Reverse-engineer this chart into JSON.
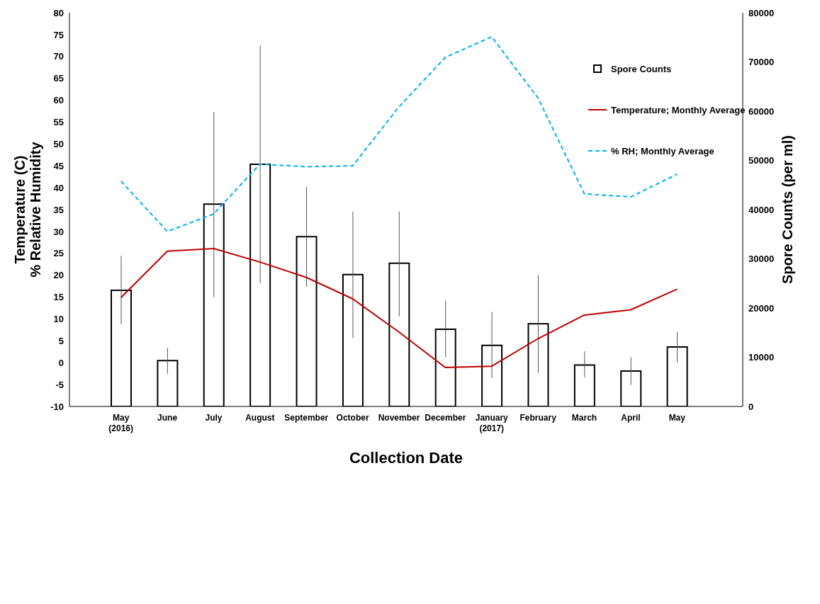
{
  "chart_data": {
    "type": "bar",
    "xlabel": "Collection Date",
    "ylabel": "Temperature (C)\n% Relative Humidity",
    "y2label": "Spore Counts (per ml)",
    "categories": [
      "May\n(2016)",
      "June",
      "July",
      "August",
      "September",
      "October",
      "November",
      "December",
      "January\n(2017)",
      "February",
      "March",
      "April",
      "May"
    ],
    "series": [
      {
        "name": "Spore Counts",
        "axis": "y2",
        "color": "#000000",
        "values": [
          23600,
          9300,
          41100,
          49200,
          34500,
          26800,
          29100,
          15700,
          12400,
          16800,
          8400,
          7200,
          12100
        ],
        "errors": [
          [
            16700,
            30600
          ],
          [
            6600,
            11900
          ],
          [
            22200,
            59800
          ],
          [
            25100,
            73300
          ],
          [
            24300,
            44600
          ],
          [
            13900,
            39600
          ],
          [
            18300,
            39600
          ],
          [
            10000,
            21500
          ],
          [
            5800,
            19200
          ],
          [
            6800,
            26700
          ],
          [
            5900,
            11200
          ],
          [
            4400,
            10000
          ],
          [
            8900,
            15100
          ]
        ]
      },
      {
        "name": "Temperature; Monthly Average",
        "type": "line",
        "color": "#c00000",
        "line_style": "solid",
        "values": [
          14.9,
          25.5,
          26.1,
          23,
          19.5,
          14.6,
          7,
          -1.1,
          -0.8,
          5.5,
          10.9,
          12.1,
          16.8
        ]
      },
      {
        "name": "% RH; Monthly Average",
        "type": "line",
        "color": "#00b0f0",
        "line_style": "dashed",
        "values": [
          41.5,
          30,
          34,
          45.4,
          44.8,
          45,
          58.5,
          69.8,
          74.5,
          60.5,
          38.6,
          37.9,
          43.1
        ]
      }
    ],
    "ylim": [
      -10,
      80
    ],
    "yticks": [
      -10,
      -5,
      0,
      5,
      10,
      15,
      20,
      25,
      30,
      35,
      40,
      45,
      50,
      55,
      60,
      65,
      70,
      75,
      80
    ],
    "y2lim": [
      0,
      80000
    ],
    "y2ticks": [
      0,
      10000,
      20000,
      30000,
      40000,
      50000,
      60000,
      70000,
      80000
    ],
    "grid": false,
    "legend": "top right",
    "marker": "none"
  }
}
